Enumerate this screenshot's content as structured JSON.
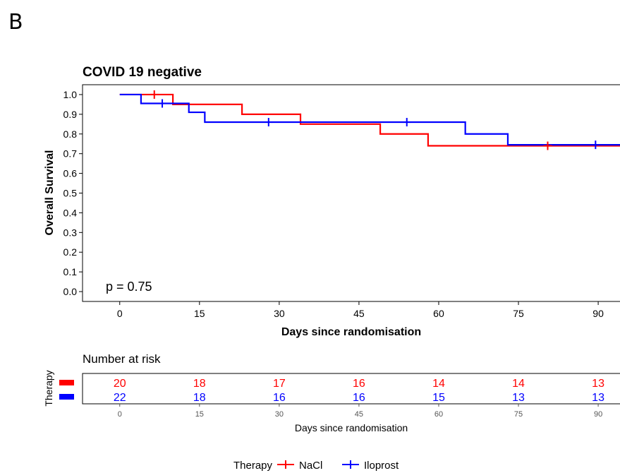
{
  "panel_label": "B",
  "chart_data": {
    "type": "line",
    "title": "COVID 19 negative",
    "xlabel": "Days since randomisation",
    "ylabel": "Overall Survival",
    "xlim": [
      -7,
      94.5
    ],
    "ylim": [
      -0.05,
      1.05
    ],
    "x_ticks": [
      0,
      15,
      30,
      45,
      60,
      75,
      90
    ],
    "x_tick_labels": [
      "0",
      "15",
      "30",
      "45",
      "60",
      "75",
      "90"
    ],
    "y_ticks": [
      0.0,
      0.1,
      0.2,
      0.3,
      0.4,
      0.5,
      0.6,
      0.7,
      0.8,
      0.9,
      1.0
    ],
    "y_tick_labels": [
      "0.0",
      "0.1",
      "0.2",
      "0.3",
      "0.4",
      "0.5",
      "0.6",
      "0.7",
      "0.8",
      "0.9",
      "1.0"
    ],
    "annotation": "p = 0.75",
    "grid": false,
    "legend_position": "bottom",
    "series": [
      {
        "name": "NaCl",
        "color": "#ff0000",
        "steps": [
          [
            0,
            1.0
          ],
          [
            10,
            0.95
          ],
          [
            23,
            0.9
          ],
          [
            34,
            0.85
          ],
          [
            49,
            0.8
          ],
          [
            58,
            0.74
          ],
          [
            94.5,
            0.68
          ]
        ],
        "censor": [
          [
            6.5,
            1.0
          ],
          [
            80.5,
            0.74
          ]
        ]
      },
      {
        "name": "Iloprost",
        "color": "#0000ff",
        "steps": [
          [
            0,
            1.0
          ],
          [
            4,
            0.955
          ],
          [
            13,
            0.91
          ],
          [
            16,
            0.86
          ],
          [
            65,
            0.8
          ],
          [
            73,
            0.745
          ]
        ],
        "censor": [
          [
            8,
            0.955
          ],
          [
            28,
            0.86
          ],
          [
            54,
            0.86
          ],
          [
            89.5,
            0.745
          ]
        ]
      }
    ],
    "risk_table": {
      "title": "Number at risk",
      "ylabel": "Therapy",
      "xlabel": "Days since randomisation",
      "times": [
        0,
        15,
        30,
        45,
        60,
        75,
        90
      ],
      "time_labels": [
        "0",
        "15",
        "30",
        "45",
        "60",
        "75",
        "90"
      ],
      "rows": [
        {
          "name": "NaCl",
          "color": "#ff0000",
          "counts": [
            "20",
            "18",
            "17",
            "16",
            "14",
            "14",
            "13"
          ]
        },
        {
          "name": "Iloprost",
          "color": "#0000ff",
          "counts": [
            "22",
            "18",
            "16",
            "16",
            "15",
            "13",
            "13"
          ]
        }
      ]
    },
    "legend": {
      "title": "Therapy",
      "entries": [
        {
          "label": "NaCl",
          "color": "#ff0000"
        },
        {
          "label": "Iloprost",
          "color": "#0000ff"
        }
      ]
    }
  }
}
